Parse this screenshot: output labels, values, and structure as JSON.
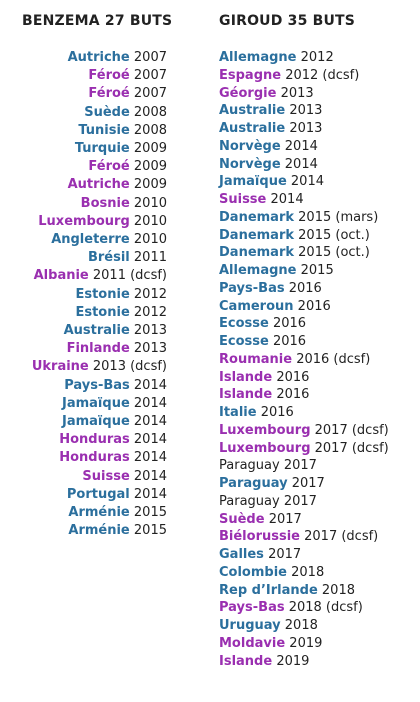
{
  "columns": [
    {
      "title": "BENZEMA 27 BUTS",
      "align": "right",
      "entries": [
        {
          "country": "Autriche",
          "detail": "2007",
          "color": "#2b6f9d"
        },
        {
          "country": "Féroé",
          "detail": "2007",
          "color": "#9a2fb0"
        },
        {
          "country": "Féroé",
          "detail": "2007",
          "color": "#9a2fb0"
        },
        {
          "country": "Suède",
          "detail": "2008",
          "color": "#2b6f9d"
        },
        {
          "country": "Tunisie",
          "detail": "2008",
          "color": "#2b6f9d"
        },
        {
          "country": "Turquie",
          "detail": "2009",
          "color": "#2b6f9d"
        },
        {
          "country": "Féroé",
          "detail": "2009",
          "color": "#9a2fb0"
        },
        {
          "country": "Autriche",
          "detail": "2009",
          "color": "#9a2fb0"
        },
        {
          "country": "Bosnie",
          "detail": "2010",
          "color": "#9a2fb0"
        },
        {
          "country": "Luxembourg",
          "detail": "2010",
          "color": "#9a2fb0"
        },
        {
          "country": "Angleterre",
          "detail": "2010",
          "color": "#2b6f9d"
        },
        {
          "country": "Brésil",
          "detail": "2011",
          "color": "#2b6f9d"
        },
        {
          "country": "Albanie",
          "detail": "2011 (dcsf)",
          "color": "#9a2fb0"
        },
        {
          "country": "Estonie",
          "detail": "2012",
          "color": "#2b6f9d"
        },
        {
          "country": "Estonie",
          "detail": "2012",
          "color": "#2b6f9d"
        },
        {
          "country": "Australie",
          "detail": "2013",
          "color": "#2b6f9d"
        },
        {
          "country": "Finlande",
          "detail": "2013",
          "color": "#9a2fb0"
        },
        {
          "country": "Ukraine",
          "detail": "2013 (dcsf)",
          "color": "#9a2fb0"
        },
        {
          "country": "Pays-Bas",
          "detail": "2014",
          "color": "#2b6f9d"
        },
        {
          "country": "Jamaïque",
          "detail": "2014",
          "color": "#2b6f9d"
        },
        {
          "country": "Jamaïque",
          "detail": "2014",
          "color": "#2b6f9d"
        },
        {
          "country": "Honduras",
          "detail": "2014",
          "color": "#9a2fb0"
        },
        {
          "country": "Honduras",
          "detail": "2014",
          "color": "#9a2fb0"
        },
        {
          "country": "Suisse",
          "detail": "2014",
          "color": "#9a2fb0"
        },
        {
          "country": "Portugal",
          "detail": "2014",
          "color": "#2b6f9d"
        },
        {
          "country": "Arménie",
          "detail": "2015",
          "color": "#2b6f9d"
        },
        {
          "country": "Arménie",
          "detail": "2015",
          "color": "#2b6f9d"
        }
      ]
    },
    {
      "title": "GIROUD 35 BUTS",
      "align": "left",
      "entries": [
        {
          "country": "Allemagne",
          "detail": "2012",
          "color": "#2b6f9d"
        },
        {
          "country": "Espagne",
          "detail": "2012 (dcsf)",
          "color": "#9a2fb0"
        },
        {
          "country": "Géorgie",
          "detail": "2013",
          "color": "#9a2fb0"
        },
        {
          "country": "Australie",
          "detail": "2013",
          "color": "#2b6f9d"
        },
        {
          "country": "Australie",
          "detail": "2013",
          "color": "#2b6f9d"
        },
        {
          "country": "Norvège",
          "detail": "2014",
          "color": "#2b6f9d"
        },
        {
          "country": "Norvège",
          "detail": "2014",
          "color": "#2b6f9d"
        },
        {
          "country": "Jamaïque",
          "detail": "2014",
          "color": "#2b6f9d"
        },
        {
          "country": "Suisse",
          "detail": "2014",
          "color": "#9a2fb0"
        },
        {
          "country": "Danemark",
          "detail": "2015 (mars)",
          "color": "#2b6f9d"
        },
        {
          "country": "Danemark",
          "detail": "2015 (oct.)",
          "color": "#2b6f9d"
        },
        {
          "country": "Danemark",
          "detail": "2015 (oct.)",
          "color": "#2b6f9d"
        },
        {
          "country": "Allemagne",
          "detail": "2015",
          "color": "#2b6f9d"
        },
        {
          "country": "Pays-Bas",
          "detail": "2016",
          "color": "#2b6f9d"
        },
        {
          "country": "Cameroun",
          "detail": "2016",
          "color": "#2b6f9d"
        },
        {
          "country": "Ecosse",
          "detail": "2016",
          "color": "#2b6f9d"
        },
        {
          "country": "Ecosse",
          "detail": "2016",
          "color": "#2b6f9d"
        },
        {
          "country": "Roumanie",
          "detail": "2016 (dcsf)",
          "color": "#9a2fb0"
        },
        {
          "country": "Islande",
          "detail": "2016",
          "color": "#9a2fb0"
        },
        {
          "country": "Islande",
          "detail": "2016",
          "color": "#9a2fb0"
        },
        {
          "country": "Italie",
          "detail": "2016",
          "color": "#2b6f9d"
        },
        {
          "country": "Luxembourg",
          "detail": "2017 (dcsf)",
          "color": "#9a2fb0"
        },
        {
          "country": "Luxembourg",
          "detail": "2017 (dcsf)",
          "color": "#9a2fb0"
        },
        {
          "country": "Paraguay",
          "detail": "2017",
          "color": "#222222",
          "bold": false
        },
        {
          "country": "Paraguay",
          "detail": "2017",
          "color": "#2b6f9d"
        },
        {
          "country": "Paraguay",
          "detail": "2017",
          "color": "#222222",
          "bold": false
        },
        {
          "country": "Suède",
          "detail": "2017",
          "color": "#9a2fb0"
        },
        {
          "country": "Biélorussie",
          "detail": "2017 (dcsf)",
          "color": "#9a2fb0"
        },
        {
          "country": "Galles",
          "detail": "2017",
          "color": "#2b6f9d"
        },
        {
          "country": "Colombie",
          "detail": "2018",
          "color": "#2b6f9d"
        },
        {
          "country": "Rep d’Irlande",
          "detail": "2018",
          "color": "#2b6f9d"
        },
        {
          "country": "Pays-Bas",
          "detail": "2018 (dcsf)",
          "color": "#9a2fb0"
        },
        {
          "country": "Uruguay",
          "detail": "2018",
          "color": "#2b6f9d"
        },
        {
          "country": "Moldavie",
          "detail": "2019",
          "color": "#9a2fb0"
        },
        {
          "country": "Islande",
          "detail": "2019",
          "color": "#9a2fb0"
        }
      ]
    }
  ]
}
